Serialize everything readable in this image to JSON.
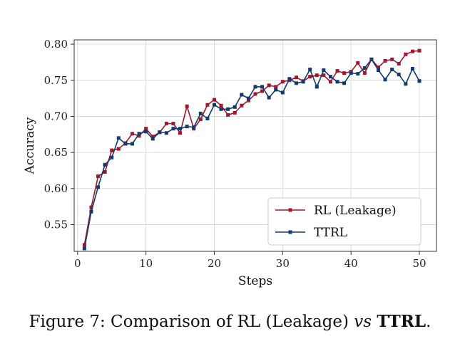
{
  "chart_data": {
    "type": "line",
    "xlabel": "Steps",
    "ylabel": "Accuracy",
    "xlim": [
      -0.5,
      52.5
    ],
    "ylim": [
      0.513,
      0.806
    ],
    "xticks": [
      0,
      10,
      20,
      30,
      40,
      50
    ],
    "yticks": [
      0.55,
      0.6,
      0.65,
      0.7,
      0.75,
      0.8
    ],
    "grid": true,
    "legend_position": "lower-right",
    "series": [
      {
        "name": "RL (Leakage)",
        "color": "#A3162B",
        "marker": "square",
        "x": [
          1,
          2,
          3,
          4,
          5,
          6,
          7,
          8,
          9,
          10,
          11,
          12,
          13,
          14,
          15,
          16,
          17,
          18,
          19,
          20,
          21,
          22,
          23,
          24,
          25,
          26,
          27,
          28,
          29,
          30,
          31,
          32,
          33,
          34,
          35,
          36,
          37,
          38,
          39,
          40,
          41,
          42,
          43,
          44,
          45,
          46,
          47,
          48,
          49,
          50
        ],
        "values": [
          0.522,
          0.574,
          0.617,
          0.623,
          0.653,
          0.655,
          0.663,
          0.676,
          0.673,
          0.683,
          0.672,
          0.678,
          0.69,
          0.69,
          0.677,
          0.714,
          0.683,
          0.696,
          0.716,
          0.723,
          0.715,
          0.702,
          0.705,
          0.715,
          0.722,
          0.731,
          0.735,
          0.743,
          0.741,
          0.748,
          0.75,
          0.754,
          0.749,
          0.755,
          0.757,
          0.757,
          0.748,
          0.763,
          0.76,
          0.762,
          0.774,
          0.76,
          0.779,
          0.768,
          0.777,
          0.779,
          0.773,
          0.786,
          0.79,
          0.791
        ]
      },
      {
        "name": "TTRL",
        "color": "#123A6B",
        "marker": "square",
        "x": [
          1,
          2,
          3,
          4,
          5,
          6,
          7,
          8,
          9,
          10,
          11,
          12,
          13,
          14,
          15,
          16,
          17,
          18,
          19,
          20,
          21,
          22,
          23,
          24,
          25,
          26,
          27,
          28,
          29,
          30,
          31,
          32,
          33,
          34,
          35,
          36,
          37,
          38,
          39,
          40,
          41,
          42,
          43,
          44,
          45,
          46,
          47,
          48,
          49,
          50
        ],
        "values": [
          0.517,
          0.568,
          0.602,
          0.633,
          0.643,
          0.67,
          0.662,
          0.662,
          0.676,
          0.679,
          0.669,
          0.678,
          0.677,
          0.683,
          0.683,
          0.686,
          0.685,
          0.704,
          0.697,
          0.716,
          0.71,
          0.71,
          0.713,
          0.73,
          0.725,
          0.741,
          0.741,
          0.726,
          0.737,
          0.733,
          0.752,
          0.746,
          0.748,
          0.765,
          0.741,
          0.764,
          0.755,
          0.748,
          0.746,
          0.76,
          0.759,
          0.767,
          0.779,
          0.764,
          0.751,
          0.765,
          0.758,
          0.745,
          0.766,
          0.749
        ]
      }
    ]
  },
  "caption": {
    "prefix": "Figure 7: Comparison of RL (Leakage) ",
    "italic": "vs",
    "space": " ",
    "bold": "TTRL",
    "suffix": "."
  }
}
